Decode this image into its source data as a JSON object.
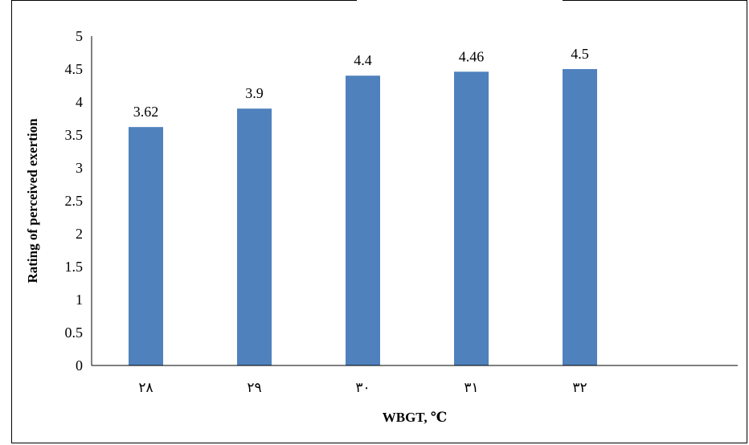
{
  "chart_data": {
    "type": "bar",
    "categories": [
      "۲۸",
      "۲۹",
      "۳۰",
      "۳۱",
      "۳۲"
    ],
    "values": [
      3.62,
      3.9,
      4.4,
      4.46,
      4.5
    ],
    "data_labels": [
      "3.62",
      "3.9",
      "4.4",
      "4.46",
      "4.5"
    ],
    "xlabel": "WBGT, ℃",
    "ylabel": "Rating of perceived exertion",
    "ylim": [
      0,
      5
    ],
    "yticks": [
      "0",
      "0.5",
      "1",
      "1.5",
      "2",
      "2.5",
      "3",
      "3.5",
      "4",
      "4.5",
      "5"
    ],
    "ytick_values": [
      0,
      0.5,
      1,
      1.5,
      2,
      2.5,
      3,
      3.5,
      4,
      4.5,
      5
    ],
    "bar_color": "#4F81BD",
    "grid": false,
    "legend": "none"
  }
}
